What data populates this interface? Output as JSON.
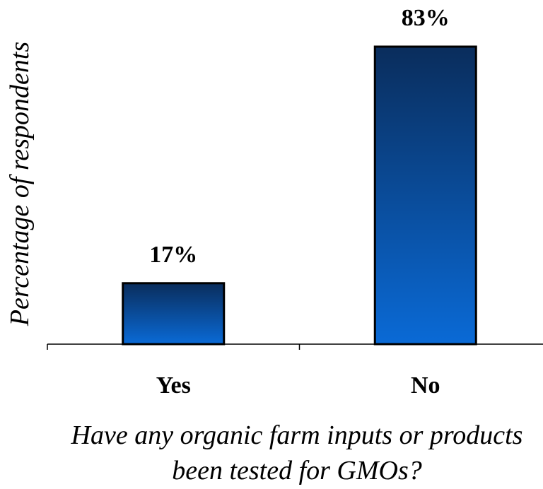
{
  "chart_data": {
    "type": "bar",
    "categories": [
      "Yes",
      "No"
    ],
    "values": [
      17,
      83
    ],
    "data_labels": [
      "17%",
      "83%"
    ],
    "ylabel": "Percentage of respondents",
    "xlabel_lines": [
      "Have any organic farm inputs or products",
      "been tested for GMOs?"
    ],
    "ylim": [
      0,
      83
    ],
    "grid": false,
    "legend": "none",
    "colors": {
      "bar_top": "#0a2d5c",
      "bar_bottom": "#0a6ad6",
      "outline": "#000000"
    }
  }
}
